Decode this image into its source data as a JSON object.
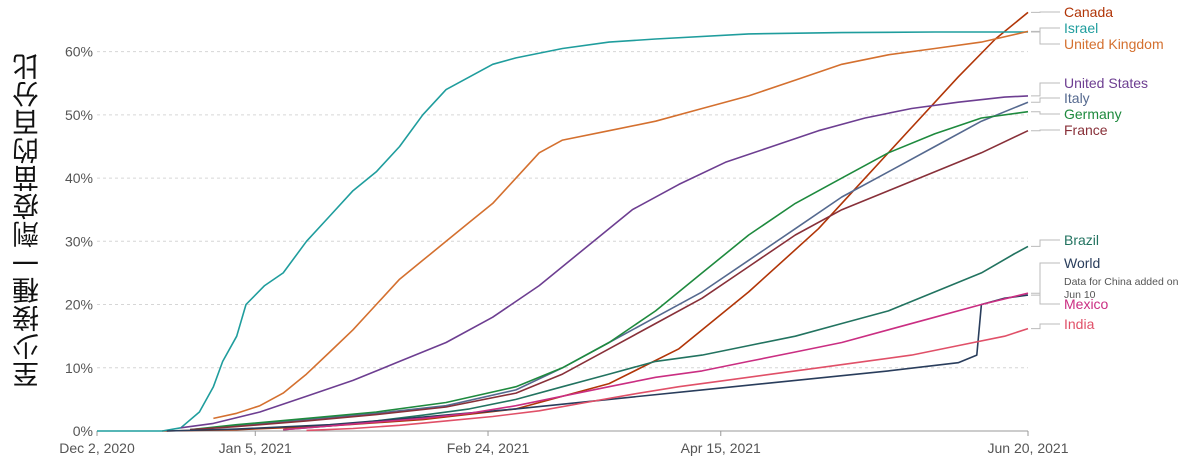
{
  "chart_data": {
    "type": "line",
    "ylabel": "至少接種一劑疫苗的百分比",
    "xlabel": "",
    "x_ticks": [
      "Dec 2, 2020",
      "Jan 5, 2021",
      "Feb 24, 2021",
      "Apr 15, 2021",
      "Jun 20, 2021"
    ],
    "x_tick_days": [
      0,
      34,
      84,
      134,
      200
    ],
    "y_ticks": [
      "0%",
      "10%",
      "20%",
      "30%",
      "40%",
      "50%",
      "60%"
    ],
    "ylim": [
      0,
      65
    ],
    "xlim": [
      "2020-12-02",
      "2021-06-20"
    ],
    "grid": "horizontal dashed",
    "legend_position": "right, labels at line ends",
    "series": [
      {
        "name": "Canada",
        "color": "#b13507",
        "points": [
          [
            14,
            0
          ],
          [
            30,
            0.2
          ],
          [
            50,
            0.8
          ],
          [
            70,
            1.8
          ],
          [
            90,
            3.5
          ],
          [
            110,
            7.5
          ],
          [
            125,
            13
          ],
          [
            140,
            22
          ],
          [
            155,
            32
          ],
          [
            165,
            40
          ],
          [
            175,
            48
          ],
          [
            185,
            56
          ],
          [
            193,
            62
          ],
          [
            200,
            66.2
          ]
        ]
      },
      {
        "name": "Israel",
        "color": "#1f9d9d",
        "points": [
          [
            0,
            0
          ],
          [
            14,
            0
          ],
          [
            18,
            0.5
          ],
          [
            22,
            3
          ],
          [
            25,
            7
          ],
          [
            27,
            11
          ],
          [
            30,
            15
          ],
          [
            32,
            20
          ],
          [
            36,
            23
          ],
          [
            40,
            25
          ],
          [
            45,
            30
          ],
          [
            50,
            34
          ],
          [
            55,
            38
          ],
          [
            60,
            41
          ],
          [
            65,
            45
          ],
          [
            70,
            50
          ],
          [
            75,
            54
          ],
          [
            80,
            56
          ],
          [
            85,
            58
          ],
          [
            90,
            59
          ],
          [
            100,
            60.5
          ],
          [
            110,
            61.5
          ],
          [
            120,
            62
          ],
          [
            140,
            62.8
          ],
          [
            160,
            63
          ],
          [
            180,
            63.1
          ],
          [
            200,
            63.1
          ]
        ]
      },
      {
        "name": "United Kingdom",
        "color": "#d4702f",
        "points": [
          [
            25,
            2
          ],
          [
            30,
            2.8
          ],
          [
            35,
            4
          ],
          [
            40,
            6
          ],
          [
            45,
            9
          ],
          [
            50,
            12.5
          ],
          [
            55,
            16
          ],
          [
            60,
            20
          ],
          [
            65,
            24
          ],
          [
            70,
            27
          ],
          [
            75,
            30
          ],
          [
            80,
            33
          ],
          [
            85,
            36
          ],
          [
            90,
            40
          ],
          [
            95,
            44
          ],
          [
            100,
            46
          ],
          [
            110,
            47.5
          ],
          [
            120,
            49
          ],
          [
            130,
            51
          ],
          [
            140,
            53
          ],
          [
            150,
            55.5
          ],
          [
            160,
            58
          ],
          [
            170,
            59.5
          ],
          [
            180,
            60.5
          ],
          [
            190,
            61.5
          ],
          [
            200,
            63.2
          ]
        ]
      },
      {
        "name": "United States",
        "color": "#6d3e91",
        "points": [
          [
            18,
            0.5
          ],
          [
            25,
            1.2
          ],
          [
            35,
            3
          ],
          [
            45,
            5.5
          ],
          [
            55,
            8
          ],
          [
            65,
            11
          ],
          [
            75,
            14
          ],
          [
            85,
            18
          ],
          [
            95,
            23
          ],
          [
            105,
            29
          ],
          [
            115,
            35
          ],
          [
            125,
            39
          ],
          [
            135,
            42.5
          ],
          [
            145,
            45
          ],
          [
            155,
            47.5
          ],
          [
            165,
            49.5
          ],
          [
            175,
            51
          ],
          [
            185,
            52
          ],
          [
            195,
            52.8
          ],
          [
            200,
            53
          ]
        ]
      },
      {
        "name": "Italy",
        "color": "#55698f",
        "points": [
          [
            20,
            0.2
          ],
          [
            30,
            0.8
          ],
          [
            45,
            1.8
          ],
          [
            60,
            2.8
          ],
          [
            75,
            4
          ],
          [
            90,
            6.5
          ],
          [
            100,
            10
          ],
          [
            110,
            14
          ],
          [
            120,
            18
          ],
          [
            130,
            22
          ],
          [
            140,
            27
          ],
          [
            150,
            32
          ],
          [
            160,
            37
          ],
          [
            170,
            41
          ],
          [
            180,
            45
          ],
          [
            190,
            49
          ],
          [
            200,
            52
          ]
        ]
      },
      {
        "name": "Germany",
        "color": "#1e8a3e",
        "points": [
          [
            20,
            0.2
          ],
          [
            30,
            1
          ],
          [
            45,
            2
          ],
          [
            60,
            3
          ],
          [
            75,
            4.5
          ],
          [
            90,
            7
          ],
          [
            100,
            10
          ],
          [
            110,
            14
          ],
          [
            120,
            19
          ],
          [
            130,
            25
          ],
          [
            140,
            31
          ],
          [
            150,
            36
          ],
          [
            160,
            40
          ],
          [
            170,
            44
          ],
          [
            180,
            47
          ],
          [
            190,
            49.5
          ],
          [
            200,
            50.5
          ]
        ]
      },
      {
        "name": "France",
        "color": "#883039",
        "points": [
          [
            20,
            0.2
          ],
          [
            30,
            0.7
          ],
          [
            45,
            1.6
          ],
          [
            60,
            2.6
          ],
          [
            75,
            3.8
          ],
          [
            90,
            6
          ],
          [
            100,
            9
          ],
          [
            110,
            13
          ],
          [
            120,
            17
          ],
          [
            130,
            21
          ],
          [
            140,
            26
          ],
          [
            150,
            31
          ],
          [
            160,
            35
          ],
          [
            170,
            38
          ],
          [
            180,
            41
          ],
          [
            190,
            44
          ],
          [
            200,
            47.5
          ]
        ]
      },
      {
        "name": "Brazil",
        "color": "#227360",
        "points": [
          [
            40,
            0.2
          ],
          [
            50,
            0.8
          ],
          [
            60,
            1.6
          ],
          [
            70,
            2.5
          ],
          [
            80,
            3.5
          ],
          [
            90,
            5
          ],
          [
            100,
            7
          ],
          [
            110,
            9
          ],
          [
            120,
            11
          ],
          [
            130,
            12
          ],
          [
            140,
            13.5
          ],
          [
            150,
            15
          ],
          [
            160,
            17
          ],
          [
            170,
            19
          ],
          [
            180,
            22
          ],
          [
            190,
            25
          ],
          [
            197,
            28
          ],
          [
            200,
            29.2
          ]
        ]
      },
      {
        "name": "World",
        "color": "#293d5c",
        "points": [
          [
            15,
            0
          ],
          [
            30,
            0.3
          ],
          [
            50,
            1
          ],
          [
            70,
            2.2
          ],
          [
            90,
            3.5
          ],
          [
            110,
            5
          ],
          [
            130,
            6.5
          ],
          [
            150,
            8
          ],
          [
            170,
            9.5
          ],
          [
            185,
            10.8
          ],
          [
            189,
            12
          ],
          [
            190,
            20
          ],
          [
            195,
            21
          ],
          [
            200,
            21.5
          ]
        ]
      },
      {
        "name": "Mexico",
        "color": "#ca2e82",
        "points": [
          [
            40,
            0.2
          ],
          [
            50,
            0.8
          ],
          [
            60,
            1.4
          ],
          [
            70,
            2
          ],
          [
            80,
            2.8
          ],
          [
            90,
            4
          ],
          [
            100,
            5.5
          ],
          [
            110,
            7
          ],
          [
            120,
            8.5
          ],
          [
            130,
            9.5
          ],
          [
            140,
            11
          ],
          [
            150,
            12.5
          ],
          [
            160,
            14
          ],
          [
            170,
            16
          ],
          [
            180,
            18
          ],
          [
            190,
            20
          ],
          [
            200,
            21.8
          ]
        ]
      },
      {
        "name": "India",
        "color": "#e05068",
        "points": [
          [
            45,
            0.1
          ],
          [
            55,
            0.4
          ],
          [
            65,
            0.9
          ],
          [
            75,
            1.6
          ],
          [
            85,
            2.3
          ],
          [
            95,
            3.2
          ],
          [
            105,
            4.5
          ],
          [
            115,
            5.8
          ],
          [
            125,
            7
          ],
          [
            135,
            8
          ],
          [
            145,
            9
          ],
          [
            155,
            10
          ],
          [
            165,
            11
          ],
          [
            175,
            12
          ],
          [
            185,
            13.5
          ],
          [
            195,
            15
          ],
          [
            200,
            16.2
          ]
        ]
      }
    ],
    "annotations": [
      {
        "text": "Data for China added on",
        "anchor_series": "World"
      },
      {
        "text": "Jun 10",
        "anchor_series": "World"
      }
    ]
  }
}
